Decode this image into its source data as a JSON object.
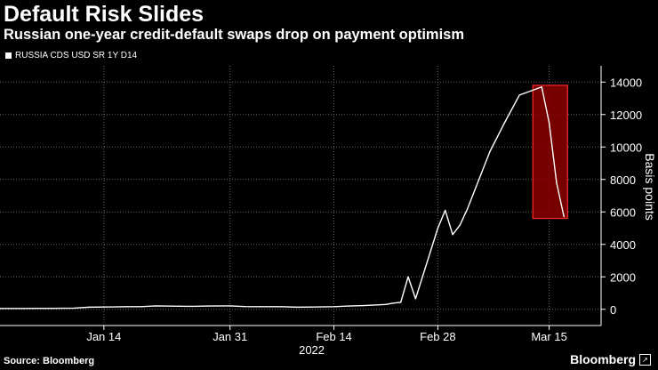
{
  "title": "Default Risk Slides",
  "subtitle": "Russian one-year credit-default swaps drop on payment optimism",
  "legend_label": "RUSSIA CDS USD SR 1Y D14",
  "source": "Source: Bloomberg",
  "brand": "Bloomberg",
  "colors": {
    "background": "#000000",
    "line": "#ffffff",
    "highlight_fill": "#8b0000",
    "highlight_stroke": "#ff2a2a",
    "grid": "#666666"
  },
  "chart_data": {
    "type": "line",
    "title": "Default Risk Slides",
    "subtitle": "Russian one-year credit-default swaps drop on payment optimism",
    "ylabel": "Basis points",
    "xlabel": "2022",
    "ylim": [
      -1000,
      15000
    ],
    "y_ticks": [
      0,
      2000,
      4000,
      6000,
      8000,
      10000,
      12000,
      14000
    ],
    "x_ticks": [
      "Jan 14",
      "Jan 31",
      "Feb 14",
      "Feb 28",
      "Mar 15"
    ],
    "year_label": "2022",
    "grid": true,
    "y_axis_position": "right",
    "series": [
      {
        "name": "RUSSIA CDS USD SR 1Y D14",
        "x": [
          "2021-12-31",
          "2022-01-03",
          "2022-01-05",
          "2022-01-07",
          "2022-01-10",
          "2022-01-12",
          "2022-01-14",
          "2022-01-17",
          "2022-01-19",
          "2022-01-21",
          "2022-01-24",
          "2022-01-26",
          "2022-01-28",
          "2022-01-31",
          "2022-02-02",
          "2022-02-04",
          "2022-02-07",
          "2022-02-09",
          "2022-02-11",
          "2022-02-14",
          "2022-02-16",
          "2022-02-18",
          "2022-02-21",
          "2022-02-22",
          "2022-02-23",
          "2022-02-24",
          "2022-02-25",
          "2022-02-28",
          "2022-03-01",
          "2022-03-02",
          "2022-03-03",
          "2022-03-04",
          "2022-03-07",
          "2022-03-09",
          "2022-03-11",
          "2022-03-14",
          "2022-03-15",
          "2022-03-16",
          "2022-03-17"
        ],
        "values": [
          50,
          50,
          60,
          60,
          70,
          130,
          140,
          160,
          160,
          210,
          190,
          180,
          200,
          210,
          170,
          160,
          160,
          130,
          140,
          160,
          200,
          230,
          300,
          380,
          430,
          2000,
          650,
          5000,
          6100,
          4600,
          5200,
          6200,
          9700,
          11500,
          13200,
          13700,
          11500,
          7800,
          5700
        ]
      }
    ],
    "highlight": {
      "x_start": "2022-03-14",
      "x_end": "2022-03-17",
      "y_min": 5600,
      "y_max": 13800
    }
  }
}
